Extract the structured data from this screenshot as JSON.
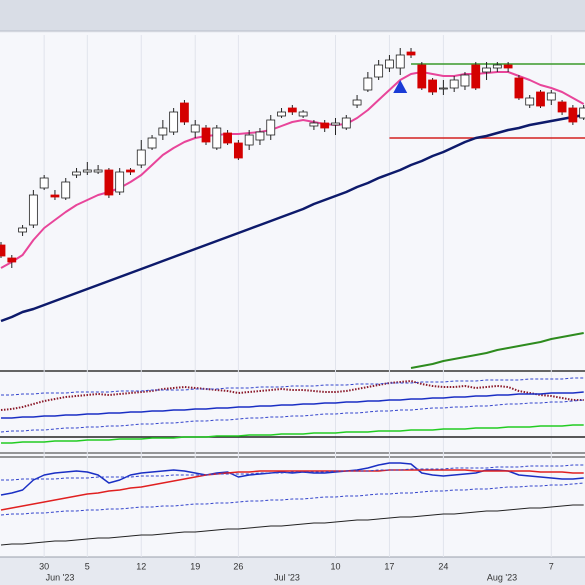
{
  "chart_data": [
    {
      "type": "candlestick",
      "ylim": [
        0,
        335
      ],
      "up_color": "#ffffff",
      "down_color": "#d40000",
      "outline_color": "#222222",
      "open": [
        125,
        112,
        138,
        145,
        182,
        175,
        172,
        195,
        198,
        198,
        200,
        178,
        200,
        205,
        222,
        235,
        238,
        267,
        238,
        242,
        222,
        237,
        227,
        225,
        230,
        235,
        254,
        262,
        254,
        244,
        247,
        245,
        242,
        265,
        280,
        293,
        302,
        302,
        318,
        305,
        290,
        282,
        282,
        284,
        305,
        298,
        302,
        305,
        292,
        265,
        278,
        270,
        268,
        262,
        252
      ],
      "high": [
        128,
        115,
        145,
        180,
        195,
        180,
        192,
        202,
        208,
        205,
        202,
        202,
        202,
        230,
        235,
        250,
        262,
        270,
        250,
        245,
        245,
        240,
        230,
        240,
        242,
        255,
        262,
        265,
        260,
        250,
        250,
        252,
        255,
        275,
        298,
        310,
        315,
        322,
        322,
        308,
        292,
        290,
        294,
        298,
        308,
        308,
        308,
        308,
        295,
        275,
        280,
        280,
        270,
        265,
        265
      ],
      "low": [
        112,
        102,
        134,
        142,
        180,
        170,
        170,
        192,
        195,
        196,
        172,
        175,
        195,
        202,
        220,
        230,
        235,
        245,
        232,
        225,
        220,
        225,
        210,
        220,
        225,
        230,
        252,
        255,
        252,
        240,
        238,
        235,
        240,
        262,
        278,
        290,
        298,
        295,
        312,
        280,
        275,
        275,
        278,
        280,
        280,
        290,
        298,
        298,
        270,
        262,
        262,
        265,
        255,
        245,
        250
      ],
      "close": [
        114,
        108,
        142,
        175,
        192,
        173,
        188,
        198,
        200,
        200,
        175,
        198,
        198,
        220,
        232,
        242,
        258,
        248,
        245,
        228,
        242,
        227,
        212,
        235,
        238,
        250,
        258,
        258,
        258,
        247,
        242,
        247,
        252,
        270,
        292,
        305,
        310,
        315,
        315,
        282,
        278,
        282,
        290,
        295,
        282,
        302,
        305,
        302,
        272,
        272,
        264,
        277,
        258,
        248,
        262
      ],
      "series": [
        {
          "color": "#e8459a",
          "width": 2,
          "dash": "solid",
          "values": [
            102,
            108,
            115,
            130,
            142,
            150,
            158,
            165,
            170,
            175,
            178,
            182,
            188,
            195,
            205,
            215,
            222,
            228,
            232,
            234,
            235,
            236,
            236,
            237,
            238,
            240,
            244,
            248,
            250,
            248,
            246,
            245,
            246,
            252,
            260,
            270,
            280,
            290,
            296,
            298,
            296,
            294,
            294,
            296,
            296,
            297,
            298,
            298,
            294,
            290,
            285,
            282,
            278,
            272,
            266
          ]
        },
        {
          "color": "#0d1a6b",
          "width": 2.5,
          "dash": "solid",
          "values": [
            49,
            53,
            58,
            61,
            65,
            69,
            73,
            77,
            81,
            85,
            89,
            93,
            97,
            101,
            105,
            109,
            113,
            117,
            121,
            125,
            129,
            133,
            137,
            141,
            145,
            149,
            153,
            157,
            161,
            166,
            170,
            174,
            178,
            183,
            187,
            192,
            196,
            200,
            205,
            209,
            214,
            218,
            223,
            228,
            232,
            234,
            237,
            240,
            242,
            245,
            247,
            249,
            251,
            253,
            255
          ]
        },
        {
          "color": "#2e8b1e",
          "width": 2,
          "dash": "solid",
          "values": [
            null,
            null,
            null,
            null,
            null,
            null,
            null,
            null,
            null,
            null,
            null,
            null,
            null,
            null,
            null,
            null,
            null,
            null,
            null,
            null,
            null,
            null,
            null,
            null,
            null,
            null,
            null,
            null,
            null,
            null,
            null,
            null,
            null,
            null,
            null,
            null,
            null,
            null,
            2,
            4,
            6,
            9,
            11,
            13,
            15,
            17,
            20,
            22,
            24,
            26,
            28,
            31,
            33,
            35,
            37
          ]
        }
      ],
      "hlines": [
        {
          "value": 306,
          "start": 38,
          "color": "#3a9a2a"
        },
        {
          "value": 232,
          "start": 36,
          "color": "#d42020"
        }
      ],
      "markers": [
        {
          "index": 37,
          "value": 283,
          "color": "#1a3bd6"
        }
      ]
    },
    {
      "type": "line",
      "ylim": [
        -13,
        65
      ],
      "reference": 0,
      "series": [
        {
          "color": "#8b1a2a",
          "width": 2,
          "dash": "dotted",
          "values": [
            27,
            28,
            30,
            33,
            36,
            38,
            40,
            41,
            42,
            43,
            42,
            43,
            44,
            45,
            46,
            48,
            49,
            50,
            49,
            48,
            47,
            46,
            44,
            45,
            46,
            47,
            48,
            47,
            47,
            46,
            45,
            45,
            46,
            48,
            50,
            52,
            54,
            55,
            56,
            53,
            51,
            50,
            50,
            51,
            49,
            50,
            51,
            50,
            46,
            44,
            42,
            41,
            39,
            37,
            37
          ]
        },
        {
          "color": "#1a2fc4",
          "width": 1.5,
          "dash": "solid",
          "values": [
            19,
            19,
            20,
            20,
            21,
            21,
            22,
            22,
            23,
            23,
            24,
            24,
            25,
            25,
            26,
            26,
            27,
            27,
            28,
            28,
            29,
            29,
            30,
            30,
            31,
            31,
            32,
            32,
            33,
            33,
            34,
            34,
            35,
            35,
            36,
            36,
            37,
            37,
            38,
            38,
            39,
            39,
            40,
            40,
            41,
            41,
            42,
            42,
            43,
            43,
            43,
            44,
            44,
            44,
            45
          ]
        },
        {
          "color": "#3344cc",
          "width": 1,
          "dash": "dashed",
          "values": [
            42,
            42,
            43,
            43,
            44,
            44,
            44,
            45,
            45,
            45,
            45,
            46,
            46,
            46,
            47,
            47,
            47,
            47,
            48,
            48,
            48,
            49,
            49,
            49,
            50,
            50,
            50,
            51,
            51,
            51,
            52,
            52,
            52,
            53,
            53,
            53,
            54,
            54,
            54,
            55,
            55,
            55,
            56,
            56,
            56,
            57,
            57,
            57,
            57,
            58,
            58,
            58,
            58,
            59,
            59
          ]
        },
        {
          "color": "#3344cc",
          "width": 1,
          "dash": "dashed",
          "values": [
            5,
            6,
            6,
            7,
            7,
            8,
            9,
            9,
            10,
            10,
            11,
            11,
            12,
            13,
            13,
            14,
            14,
            15,
            16,
            16,
            17,
            17,
            18,
            19,
            19,
            20,
            20,
            21,
            21,
            22,
            23,
            23,
            24,
            24,
            25,
            26,
            26,
            27,
            27,
            28,
            29,
            29,
            30,
            30,
            31,
            31,
            32,
            33,
            33,
            34,
            34,
            35,
            35,
            36,
            37
          ]
        },
        {
          "color": "#22cc22",
          "width": 1.5,
          "dash": "solid",
          "values": [
            -6,
            -6,
            -5,
            -5,
            -5,
            -4,
            -4,
            -4,
            -3,
            -3,
            -3,
            -2,
            -2,
            -2,
            -1,
            -1,
            -1,
            0,
            0,
            0,
            1,
            1,
            1,
            2,
            2,
            2,
            3,
            3,
            3,
            4,
            4,
            4,
            5,
            5,
            5,
            6,
            6,
            6,
            7,
            7,
            7,
            8,
            8,
            8,
            9,
            9,
            9,
            10,
            10,
            10,
            11,
            11,
            11,
            12,
            12
          ]
        }
      ]
    },
    {
      "type": "line",
      "ylim": [
        -2,
        100
      ],
      "categories": [
        null,
        null,
        null,
        null,
        "30",
        null,
        null,
        null,
        "5",
        null,
        null,
        null,
        null,
        "12",
        null,
        null,
        null,
        null,
        "19",
        null,
        null,
        null,
        "26",
        null,
        null,
        null,
        null,
        null,
        null,
        null,
        null,
        "10",
        null,
        null,
        null,
        null,
        "17",
        null,
        null,
        null,
        null,
        "24",
        null,
        null,
        null,
        null,
        null,
        null,
        null,
        null,
        null,
        "7",
        null,
        null,
        null
      ],
      "month_labels": [
        "Jun '23",
        "Jul '23",
        "Aug '23"
      ],
      "series": [
        {
          "color": "#1a2fc4",
          "width": 1.5,
          "dash": "solid",
          "values": [
            60,
            62,
            65,
            75,
            80,
            82,
            83,
            84,
            83,
            80,
            72,
            75,
            80,
            82,
            83,
            84,
            85,
            84,
            82,
            80,
            82,
            83,
            78,
            80,
            81,
            82,
            83,
            82,
            83,
            82,
            82,
            83,
            84,
            85,
            87,
            90,
            92,
            92,
            91,
            82,
            80,
            79,
            80,
            81,
            82,
            85,
            85,
            84,
            80,
            79,
            78,
            77,
            76,
            76,
            77
          ]
        },
        {
          "color": "#e02020",
          "width": 1.5,
          "dash": "solid",
          "values": [
            45,
            47,
            49,
            51,
            53,
            55,
            57,
            59,
            61,
            62,
            64,
            65,
            67,
            68,
            70,
            72,
            74,
            76,
            78,
            80,
            81,
            82,
            83,
            83,
            84,
            84,
            84,
            84,
            84,
            84,
            84,
            84,
            84,
            84,
            84,
            84,
            85,
            85,
            85,
            85,
            85,
            85,
            85,
            85,
            84,
            84,
            84,
            84,
            84,
            84,
            83,
            83,
            83,
            82,
            82
          ]
        },
        {
          "color": "#3344cc",
          "width": 1,
          "dash": "dashed",
          "values": [
            75,
            75,
            76,
            76,
            76,
            76,
            77,
            77,
            77,
            78,
            78,
            78,
            78,
            79,
            79,
            79,
            80,
            80,
            80,
            80,
            81,
            81,
            81,
            81,
            82,
            82,
            82,
            83,
            83,
            83,
            83,
            84,
            84,
            84,
            84,
            85,
            85,
            85,
            86,
            86,
            86,
            86,
            87,
            87,
            87,
            87,
            88,
            88,
            88,
            89,
            89,
            89,
            89,
            90,
            90
          ]
        },
        {
          "color": "#3344cc",
          "width": 1,
          "dash": "dashed",
          "values": [
            40,
            41,
            41,
            42,
            42,
            43,
            44,
            44,
            45,
            45,
            46,
            46,
            47,
            48,
            48,
            49,
            49,
            50,
            51,
            51,
            52,
            52,
            53,
            54,
            54,
            55,
            55,
            56,
            56,
            57,
            58,
            58,
            59,
            59,
            60,
            61,
            61,
            62,
            62,
            63,
            64,
            64,
            65,
            65,
            66,
            66,
            67,
            68,
            68,
            69,
            69,
            70,
            70,
            71,
            72
          ]
        },
        {
          "color": "#222222",
          "width": 1,
          "dash": "solid",
          "values": [
            10,
            11,
            11,
            12,
            13,
            14,
            14,
            15,
            16,
            17,
            17,
            18,
            19,
            20,
            20,
            21,
            22,
            23,
            23,
            24,
            25,
            26,
            26,
            27,
            28,
            29,
            29,
            30,
            31,
            32,
            32,
            33,
            34,
            35,
            35,
            36,
            37,
            38,
            38,
            39,
            40,
            41,
            41,
            42,
            43,
            44,
            44,
            45,
            46,
            47,
            47,
            48,
            49,
            50,
            50
          ]
        }
      ]
    }
  ]
}
